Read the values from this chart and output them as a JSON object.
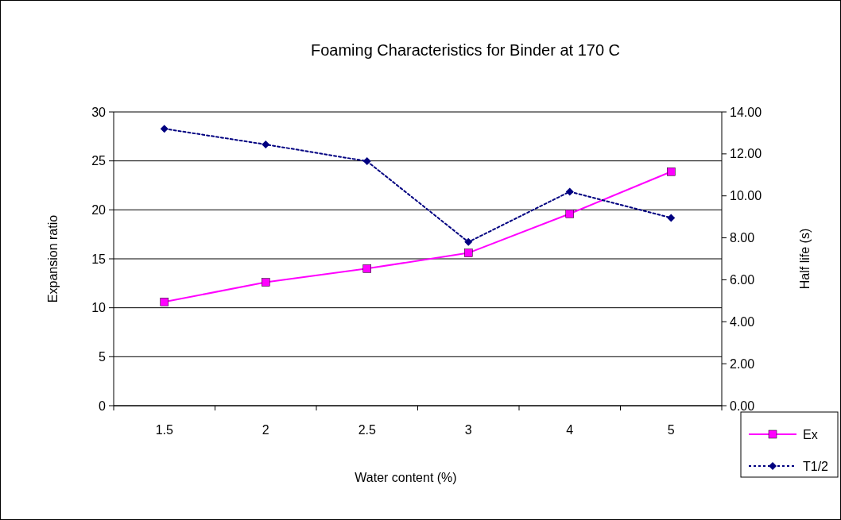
{
  "chart_data": {
    "type": "line",
    "title": "Foaming Characteristics for Binder at 170 C",
    "xlabel": "Water content (%)",
    "ylabel": "Expansion ratio",
    "y2label": "Half life (s)",
    "categories": [
      "1.5",
      "2",
      "2.5",
      "3",
      "4",
      "5"
    ],
    "series": [
      {
        "name": "Ex",
        "color": "#ff00ff",
        "values": [
          10.6,
          12.6,
          14.0,
          15.6,
          19.6,
          23.9
        ],
        "marker": "square",
        "line_style": "solid"
      },
      {
        "name": "T1/2",
        "color": "#000080",
        "values": [
          13.2,
          12.45,
          11.65,
          7.8,
          10.2,
          8.95
        ],
        "axis": "y2",
        "marker": "diamond",
        "line_style": "dotted"
      }
    ],
    "ylim": [
      0,
      30
    ],
    "yticks": [
      0,
      5,
      10,
      15,
      20,
      25,
      30
    ],
    "y2lim": [
      0,
      14
    ],
    "y2ticks": [
      {
        "value": 0,
        "label": "0.00"
      },
      {
        "value": 2,
        "label": "2.00"
      },
      {
        "value": 4,
        "label": "4.00"
      },
      {
        "value": 6,
        "label": "6.00"
      },
      {
        "value": 8,
        "label": "8.00"
      },
      {
        "value": 10,
        "label": "10.00"
      },
      {
        "value": 12,
        "label": "12.00"
      },
      {
        "value": 14,
        "label": "14.00"
      }
    ],
    "grid": "y",
    "legend": "bottom right"
  }
}
